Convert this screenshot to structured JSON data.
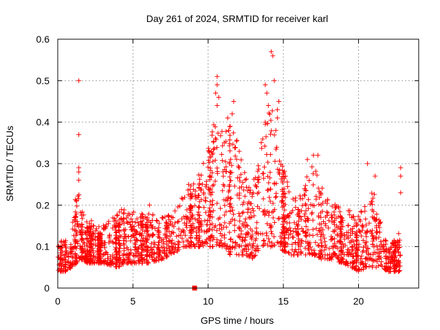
{
  "chart_data": {
    "type": "scatter",
    "title": "Day 261 of 2024, SRMTID for receiver karl",
    "xlabel": "GPS time / hours",
    "ylabel": "SRMTID / TECUs",
    "xlim": [
      0,
      24
    ],
    "ylim": [
      0,
      0.6
    ],
    "grid": true,
    "x_ticks": [
      0,
      5,
      10,
      15,
      20
    ],
    "y_ticks": [
      0,
      0.1,
      0.2,
      0.3,
      0.4,
      0.5,
      0.6
    ],
    "x_tick_labels": [
      "0",
      "5",
      "10",
      "15",
      "20"
    ],
    "y_tick_labels": [
      "0",
      "0.1",
      "0.2",
      "0.3",
      "0.4",
      "0.5",
      "0.6"
    ],
    "marker_color": "#ff0000",
    "series": [
      {
        "name": "SRMTID",
        "marker": "plus",
        "envelope": [
          [
            0.0,
            0.04,
            0.12
          ],
          [
            0.5,
            0.04,
            0.12
          ],
          [
            1.0,
            0.05,
            0.16
          ],
          [
            1.4,
            0.07,
            0.29
          ],
          [
            1.5,
            0.07,
            0.2
          ],
          [
            2.0,
            0.06,
            0.17
          ],
          [
            3.0,
            0.06,
            0.15
          ],
          [
            4.0,
            0.05,
            0.18
          ],
          [
            4.5,
            0.06,
            0.2
          ],
          [
            5.0,
            0.06,
            0.19
          ],
          [
            6.0,
            0.06,
            0.18
          ],
          [
            7.0,
            0.07,
            0.17
          ],
          [
            8.0,
            0.09,
            0.2
          ],
          [
            8.7,
            0.1,
            0.25
          ],
          [
            9.3,
            0.1,
            0.28
          ],
          [
            9.8,
            0.1,
            0.32
          ],
          [
            10.5,
            0.1,
            0.45
          ],
          [
            11.0,
            0.1,
            0.38
          ],
          [
            11.5,
            0.08,
            0.4
          ],
          [
            12.0,
            0.08,
            0.35
          ],
          [
            12.5,
            0.08,
            0.28
          ],
          [
            13.0,
            0.07,
            0.25
          ],
          [
            13.5,
            0.1,
            0.4
          ],
          [
            14.0,
            0.1,
            0.45
          ],
          [
            14.5,
            0.1,
            0.42
          ],
          [
            15.0,
            0.09,
            0.3
          ],
          [
            15.5,
            0.08,
            0.22
          ],
          [
            16.0,
            0.08,
            0.22
          ],
          [
            16.5,
            0.08,
            0.28
          ],
          [
            17.0,
            0.08,
            0.3
          ],
          [
            17.5,
            0.07,
            0.25
          ],
          [
            18.0,
            0.07,
            0.22
          ],
          [
            19.0,
            0.06,
            0.2
          ],
          [
            20.0,
            0.04,
            0.18
          ],
          [
            20.5,
            0.05,
            0.2
          ],
          [
            21.0,
            0.05,
            0.24
          ],
          [
            21.5,
            0.05,
            0.16
          ],
          [
            22.0,
            0.04,
            0.1
          ],
          [
            22.8,
            0.04,
            0.14
          ]
        ],
        "notable_points": [
          {
            "x": 1.4,
            "y": 0.5
          },
          {
            "x": 1.4,
            "y": 0.37
          },
          {
            "x": 1.4,
            "y": 0.29
          },
          {
            "x": 1.4,
            "y": 0.28
          },
          {
            "x": 1.4,
            "y": 0.26
          },
          {
            "x": 10.6,
            "y": 0.51
          },
          {
            "x": 10.6,
            "y": 0.49
          },
          {
            "x": 10.5,
            "y": 0.47
          },
          {
            "x": 10.7,
            "y": 0.46
          },
          {
            "x": 10.6,
            "y": 0.44
          },
          {
            "x": 11.7,
            "y": 0.45
          },
          {
            "x": 11.6,
            "y": 0.42
          },
          {
            "x": 11.3,
            "y": 0.41
          },
          {
            "x": 14.2,
            "y": 0.57
          },
          {
            "x": 14.3,
            "y": 0.56
          },
          {
            "x": 14.4,
            "y": 0.5
          },
          {
            "x": 13.8,
            "y": 0.49
          },
          {
            "x": 13.9,
            "y": 0.47
          },
          {
            "x": 14.7,
            "y": 0.45
          },
          {
            "x": 14.0,
            "y": 0.44
          },
          {
            "x": 14.6,
            "y": 0.43
          },
          {
            "x": 14.6,
            "y": 0.41
          },
          {
            "x": 13.8,
            "y": 0.4
          },
          {
            "x": 14.5,
            "y": 0.38
          },
          {
            "x": 17.0,
            "y": 0.32
          },
          {
            "x": 17.3,
            "y": 0.32
          },
          {
            "x": 16.6,
            "y": 0.31
          },
          {
            "x": 20.6,
            "y": 0.3
          },
          {
            "x": 21.1,
            "y": 0.27
          },
          {
            "x": 22.8,
            "y": 0.29
          },
          {
            "x": 22.8,
            "y": 0.27
          },
          {
            "x": 22.8,
            "y": 0.23
          },
          {
            "x": 6.1,
            "y": 0.2
          },
          {
            "x": 8.7,
            "y": 0.25
          }
        ]
      },
      {
        "name": "marker",
        "marker": "square",
        "points": [
          {
            "x": 9.1,
            "y": 0.0
          }
        ]
      }
    ]
  }
}
